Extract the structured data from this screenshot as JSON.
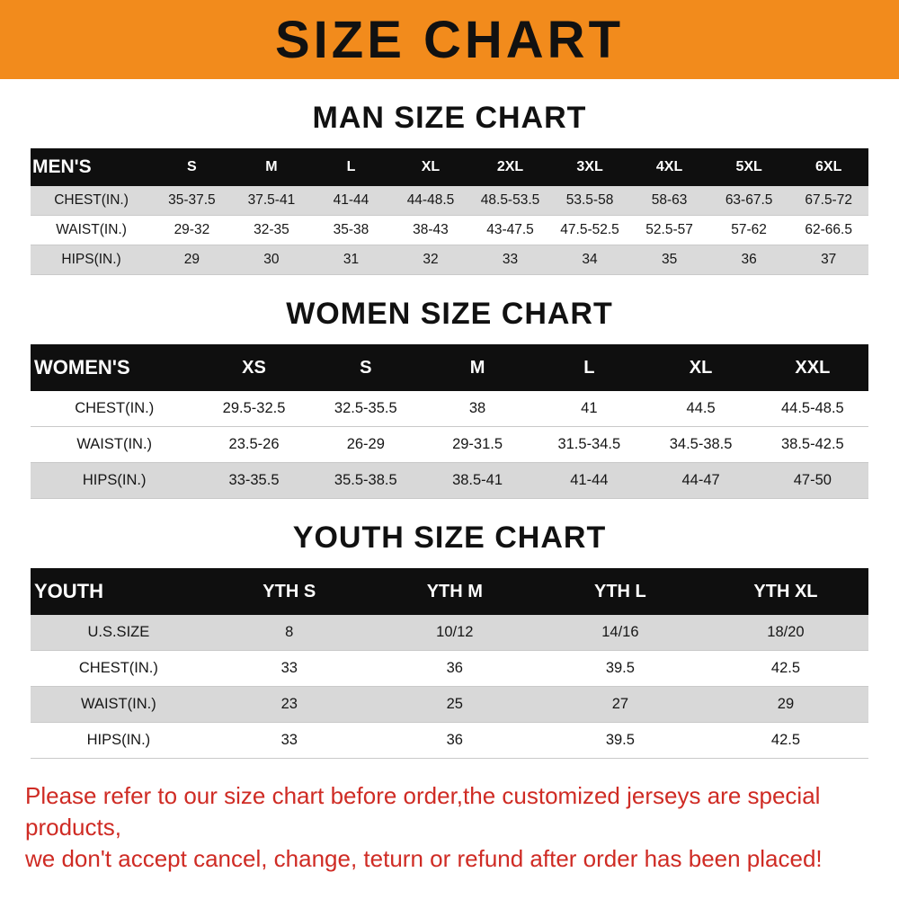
{
  "banner": {
    "title": "SIZE CHART"
  },
  "colors": {
    "banner_bg": "#f28b1c",
    "table_header_bg": "#0f0f0f",
    "row_alt_gray": "#d9d9d9",
    "footer_red": "#cf2b24"
  },
  "chart_data": [
    {
      "type": "table",
      "title": "MAN SIZE CHART",
      "columns": [
        "MEN'S",
        "S",
        "M",
        "L",
        "XL",
        "2XL",
        "3XL",
        "4XL",
        "5XL",
        "6XL"
      ],
      "rows": [
        [
          "CHEST(IN.)",
          "35-37.5",
          "37.5-41",
          "41-44",
          "44-48.5",
          "48.5-53.5",
          "53.5-58",
          "58-63",
          "63-67.5",
          "67.5-72"
        ],
        [
          "WAIST(IN.)",
          "29-32",
          "32-35",
          "35-38",
          "38-43",
          "43-47.5",
          "47.5-52.5",
          "52.5-57",
          "57-62",
          "62-66.5"
        ],
        [
          "HIPS(IN.)",
          "29",
          "30",
          "31",
          "32",
          "33",
          "34",
          "35",
          "36",
          "37"
        ]
      ]
    },
    {
      "type": "table",
      "title": "WOMEN SIZE CHART",
      "columns": [
        "WOMEN'S",
        "XS",
        "S",
        "M",
        "L",
        "XL",
        "XXL"
      ],
      "rows": [
        [
          "CHEST(IN.)",
          "29.5-32.5",
          "32.5-35.5",
          "38",
          "41",
          "44.5",
          "44.5-48.5"
        ],
        [
          "WAIST(IN.)",
          "23.5-26",
          "26-29",
          "29-31.5",
          "31.5-34.5",
          "34.5-38.5",
          "38.5-42.5"
        ],
        [
          "HIPS(IN.)",
          "33-35.5",
          "35.5-38.5",
          "38.5-41",
          "41-44",
          "44-47",
          "47-50"
        ]
      ]
    },
    {
      "type": "table",
      "title": "YOUTH SIZE CHART",
      "columns": [
        "YOUTH",
        "YTH S",
        "YTH M",
        "YTH L",
        "YTH XL"
      ],
      "rows": [
        [
          "U.S.SIZE",
          "8",
          "10/12",
          "14/16",
          "18/20"
        ],
        [
          "CHEST(IN.)",
          "33",
          "36",
          "39.5",
          "42.5"
        ],
        [
          "WAIST(IN.)",
          "23",
          "25",
          "27",
          "29"
        ],
        [
          "HIPS(IN.)",
          "33",
          "36",
          "39.5",
          "42.5"
        ]
      ]
    }
  ],
  "footer": {
    "line1": "Please refer to our size chart before order,the customized jerseys are special products,",
    "line2": "we don't accept cancel, change, teturn or refund after order has been placed!"
  }
}
